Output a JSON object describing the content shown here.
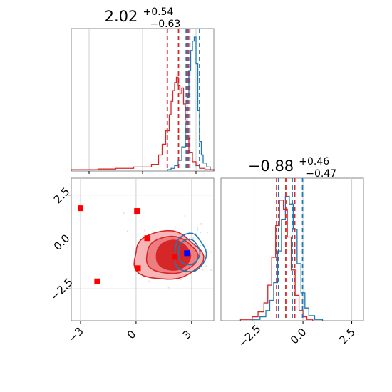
{
  "chart_data": [
    {
      "type": "histogram",
      "panel": "top-left",
      "title_value": "2.02",
      "title_sup": "+0.54",
      "title_sub": "−0.63",
      "xlim": [
        -4,
        4
      ],
      "grid": true,
      "series": [
        {
          "color": "#1f77b4",
          "bin_edges": [
            1.4,
            1.6,
            1.8,
            2.0,
            2.2,
            2.4,
            2.5,
            2.6,
            2.7,
            2.8,
            2.9,
            3.0,
            3.1,
            3.2,
            3.3,
            3.4,
            3.6,
            3.8,
            4.0
          ],
          "counts": [
            0.01,
            0.02,
            0.04,
            0.08,
            0.18,
            0.35,
            0.55,
            0.75,
            0.9,
            0.97,
            1.0,
            0.8,
            0.45,
            0.22,
            0.12,
            0.06,
            0.03,
            0.01
          ],
          "quantile_lines": [
            2.45,
            2.65,
            3.2
          ]
        },
        {
          "color": "#d62728",
          "bin_edges": [
            -4.0,
            -2.5,
            -1.5,
            -0.5,
            0.5,
            0.9,
            1.1,
            1.3,
            1.5,
            1.6,
            1.7,
            1.8,
            1.9,
            2.0,
            2.1,
            2.2,
            2.3,
            2.4,
            2.5,
            2.6,
            2.8,
            3.0,
            3.2,
            3.5,
            4.0
          ],
          "counts": [
            0.01,
            0.015,
            0.02,
            0.03,
            0.05,
            0.12,
            0.2,
            0.3,
            0.42,
            0.52,
            0.6,
            0.66,
            0.7,
            0.64,
            0.58,
            0.62,
            0.5,
            0.38,
            0.25,
            0.14,
            0.07,
            0.04,
            0.02,
            0.01
          ],
          "quantile_lines": [
            1.39,
            2.02,
            2.56
          ]
        }
      ]
    },
    {
      "type": "scatter",
      "panel": "bottom-left",
      "xlim": [
        -3.5,
        4.2
      ],
      "ylim": [
        -4.2,
        3.4
      ],
      "xticks": [
        -3,
        0,
        3
      ],
      "yticks": [
        2.5,
        0.0,
        -2.5
      ],
      "xtick_labels": [
        "−3",
        "0",
        "3"
      ],
      "ytick_labels": [
        "2.5",
        "0.0",
        "−2.5"
      ],
      "grid": true,
      "red_square_markers": [
        {
          "x": -3.0,
          "y": 1.8
        },
        {
          "x": 0.05,
          "y": 1.65
        },
        {
          "x": 0.6,
          "y": 0.2
        },
        {
          "x": 0.1,
          "y": -1.4
        },
        {
          "x": -2.1,
          "y": -2.1
        },
        {
          "x": 2.1,
          "y": -0.8
        }
      ],
      "blue_square_markers": [
        {
          "x": 2.75,
          "y": -0.6
        }
      ],
      "red_contour_levels": [
        {
          "label": "outer",
          "center": [
            1.75,
            -0.75
          ]
        },
        {
          "label": "middle",
          "center": [
            1.9,
            -0.72
          ]
        },
        {
          "label": "inner",
          "center": [
            2.0,
            -0.72
          ]
        }
      ],
      "blue_contour_levels": [
        {
          "label": "outer",
          "center": [
            2.9,
            -0.6
          ]
        },
        {
          "label": "inner",
          "center": [
            2.85,
            -0.55
          ]
        }
      ]
    },
    {
      "type": "histogram",
      "panel": "bottom-right",
      "title_value": "−0.88",
      "title_sup": "+0.46",
      "title_sub": "−0.47",
      "xlim": [
        -4.2,
        3.1
      ],
      "xticks": [
        -2.5,
        0.0,
        2.5
      ],
      "xtick_labels": [
        "−2.5",
        "0.0",
        "2.5"
      ],
      "grid": true,
      "series": [
        {
          "color": "#1f77b4",
          "bin_edges": [
            -2.6,
            -2.2,
            -1.9,
            -1.7,
            -1.5,
            -1.3,
            -1.1,
            -0.9,
            -0.7,
            -0.5,
            -0.3,
            -0.1,
            0.1,
            0.3,
            0.6,
            1.0
          ],
          "counts": [
            0.01,
            0.03,
            0.08,
            0.16,
            0.3,
            0.55,
            0.8,
            0.98,
            0.92,
            0.72,
            0.45,
            0.22,
            0.1,
            0.04,
            0.01
          ],
          "quantile_lines": [
            -1.25,
            -0.55,
            -0.02
          ]
        },
        {
          "color": "#d62728",
          "bin_edges": [
            -3.2,
            -2.6,
            -2.3,
            -2.0,
            -1.8,
            -1.6,
            -1.4,
            -1.2,
            -1.0,
            -0.8,
            -0.6,
            -0.4,
            -0.2,
            0.0,
            0.2,
            0.5
          ],
          "counts": [
            0.01,
            0.03,
            0.07,
            0.14,
            0.28,
            0.5,
            0.75,
            0.95,
            0.88,
            0.66,
            0.4,
            0.2,
            0.08,
            0.03,
            0.01
          ],
          "quantile_lines": [
            -1.35,
            -0.88,
            -0.42
          ]
        }
      ]
    }
  ]
}
